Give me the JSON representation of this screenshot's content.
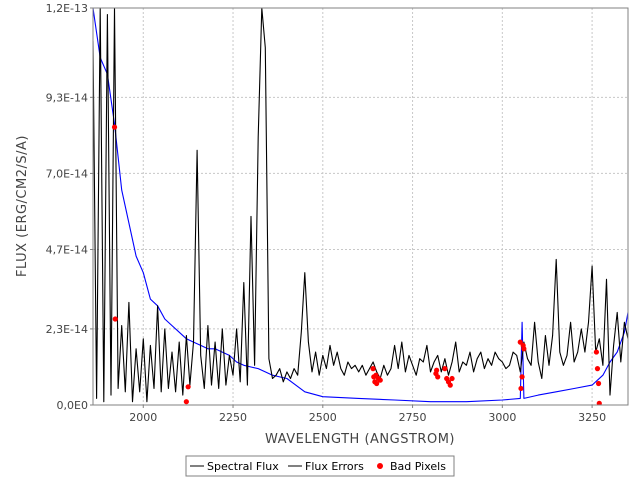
{
  "chart_data": {
    "type": "line",
    "title": "",
    "xlabel": "WAVELENGTH (ANGSTROM)",
    "ylabel": "FLUX (ERG/CM2/S/A)",
    "xlim": [
      1860,
      3350
    ],
    "ylim": [
      0,
      1.2e-13
    ],
    "x_ticks": [
      2000,
      2250,
      2500,
      2750,
      3000,
      3250
    ],
    "x_tick_labels": [
      "2000",
      "2250",
      "2500",
      "2750",
      "3000",
      "3250"
    ],
    "y_ticks": [
      0,
      2.3e-14,
      4.7e-14,
      7e-14,
      9.3e-14,
      1.2e-13
    ],
    "y_tick_labels": [
      "0,0E0",
      "2,3E-14",
      "4,7E-14",
      "7,0E-14",
      "9,3E-14",
      "1,2E-13"
    ],
    "grid": true,
    "legend_placement": "bottom-center",
    "series": [
      {
        "name": "Spectral Flux",
        "color": "#000000",
        "x": [
          1860,
          1870,
          1880,
          1890,
          1900,
          1910,
          1920,
          1930,
          1940,
          1950,
          1960,
          1970,
          1980,
          1990,
          2000,
          2010,
          2020,
          2030,
          2040,
          2050,
          2060,
          2070,
          2080,
          2090,
          2100,
          2110,
          2120,
          2130,
          2140,
          2150,
          2160,
          2170,
          2180,
          2190,
          2200,
          2210,
          2220,
          2230,
          2240,
          2250,
          2260,
          2270,
          2280,
          2290,
          2300,
          2310,
          2320,
          2330,
          2340,
          2350,
          2360,
          2370,
          2380,
          2390,
          2400,
          2410,
          2420,
          2430,
          2440,
          2450,
          2460,
          2470,
          2480,
          2490,
          2500,
          2510,
          2520,
          2530,
          2540,
          2550,
          2560,
          2570,
          2580,
          2590,
          2600,
          2610,
          2620,
          2630,
          2640,
          2650,
          2660,
          2670,
          2680,
          2690,
          2700,
          2710,
          2720,
          2730,
          2740,
          2750,
          2760,
          2770,
          2780,
          2790,
          2800,
          2810,
          2820,
          2830,
          2840,
          2850,
          2860,
          2870,
          2880,
          2890,
          2900,
          2910,
          2920,
          2930,
          2940,
          2950,
          2960,
          2970,
          2980,
          2990,
          3000,
          3010,
          3020,
          3030,
          3040,
          3050,
          3060,
          3070,
          3080,
          3090,
          3100,
          3110,
          3120,
          3130,
          3140,
          3150,
          3160,
          3170,
          3180,
          3190,
          3200,
          3210,
          3220,
          3230,
          3240,
          3250,
          3260,
          3270,
          3280,
          3290,
          3300,
          3310,
          3320,
          3330,
          3340,
          3350
        ],
        "y": [
          1.1e-13,
          2e-15,
          1.2e-13,
          1e-15,
          1.18e-13,
          3e-15,
          1.2e-13,
          5e-15,
          2.4e-14,
          4e-15,
          3.1e-14,
          1e-15,
          1.7e-14,
          4e-15,
          2e-14,
          1e-15,
          1.8e-14,
          5e-15,
          3e-14,
          4e-15,
          2.3e-14,
          5e-15,
          1.6e-14,
          4e-15,
          1.9e-14,
          3e-15,
          2.1e-14,
          6e-15,
          1.9e-14,
          7.7e-14,
          1.5e-14,
          5e-15,
          2.4e-14,
          6e-15,
          1.9e-14,
          5e-15,
          2.3e-14,
          6e-15,
          1.5e-14,
          9e-15,
          2.3e-14,
          7e-15,
          3.7e-14,
          6e-15,
          5.7e-14,
          1.2e-14,
          8.1e-14,
          1.2e-13,
          1.08e-13,
          1.4e-14,
          8e-15,
          9e-15,
          1.1e-14,
          7e-15,
          1e-14,
          8e-15,
          1.1e-14,
          9e-15,
          2.2e-14,
          4e-14,
          1.9e-14,
          1e-14,
          1.6e-14,
          9e-15,
          1.5e-14,
          1.1e-14,
          1.8e-14,
          1.2e-14,
          1.6e-14,
          1.1e-14,
          9e-15,
          1.3e-14,
          1.1e-14,
          1.2e-14,
          1e-14,
          1.2e-14,
          9e-15,
          1.1e-14,
          1.3e-14,
          1e-14,
          8e-15,
          1.2e-14,
          9e-15,
          1.1e-14,
          1.8e-14,
          1.1e-14,
          1.9e-14,
          1e-14,
          1.5e-14,
          1.2e-14,
          9e-15,
          1.4e-14,
          1.3e-14,
          1.8e-14,
          1e-14,
          1.3e-14,
          1.5e-14,
          1e-14,
          1.4e-14,
          9e-15,
          1.3e-14,
          1.9e-14,
          1e-14,
          1.3e-14,
          1.2e-14,
          1.6e-14,
          1e-14,
          1.4e-14,
          1.6e-14,
          1.1e-14,
          1.4e-14,
          1.2e-14,
          1.6e-14,
          1.4e-14,
          1.3e-14,
          1.1e-14,
          1.2e-14,
          1.6e-14,
          1.5e-14,
          1e-14,
          1.9e-14,
          1.4e-14,
          1.2e-14,
          2.5e-14,
          1.3e-14,
          8e-15,
          2.1e-14,
          1.2e-14,
          2.1e-14,
          4.4e-14,
          1.6e-14,
          1.2e-14,
          1.5e-14,
          2.5e-14,
          1.3e-14,
          1.6e-14,
          2.3e-14,
          1.6e-14,
          2.5e-14,
          4.2e-14,
          1.6e-14,
          2e-14,
          1.2e-14,
          3.8e-14,
          3e-15,
          1.8e-14,
          2.8e-14,
          1.3e-14,
          2.5e-14,
          2e-14
        ]
      },
      {
        "name": "Flux Errors",
        "color": "#0000ff",
        "x": [
          1860,
          1880,
          1900,
          1920,
          1940,
          1960,
          1980,
          2000,
          2020,
          2040,
          2060,
          2080,
          2100,
          2120,
          2140,
          2160,
          2180,
          2200,
          2220,
          2240,
          2260,
          2280,
          2300,
          2320,
          2340,
          2360,
          2380,
          2400,
          2450,
          2500,
          2600,
          2700,
          2800,
          2900,
          3000,
          3050,
          3055,
          3060,
          3100,
          3150,
          3200,
          3250,
          3280,
          3300,
          3320,
          3340,
          3350
        ],
        "y": [
          1.2e-13,
          1.05e-13,
          1e-13,
          8.5e-14,
          6.5e-14,
          5.5e-14,
          4.5e-14,
          4e-14,
          3.2e-14,
          3e-14,
          2.6e-14,
          2.4e-14,
          2.2e-14,
          2e-14,
          1.9e-14,
          1.8e-14,
          1.7e-14,
          1.7e-14,
          1.6e-14,
          1.5e-14,
          1.3e-14,
          1.2e-14,
          1.15e-14,
          1.1e-14,
          1e-14,
          9e-15,
          8.5e-15,
          8e-15,
          4e-15,
          2.5e-15,
          2e-15,
          1.5e-15,
          1e-15,
          1e-15,
          1.5e-15,
          2e-15,
          2.5e-14,
          2e-15,
          3e-15,
          4e-15,
          5e-15,
          6e-15,
          9e-15,
          1.3e-14,
          1.6e-14,
          2.2e-14,
          2.8e-14
        ]
      },
      {
        "name": "Bad Pixels",
        "color": "#ff0000",
        "type": "scatter",
        "x": [
          1920,
          1922,
          2120,
          2125,
          2640,
          2642,
          2645,
          2648,
          2650,
          2655,
          2660,
          2815,
          2817,
          2820,
          2840,
          2845,
          2850,
          2855,
          2860,
          3050,
          3052,
          3055,
          3058,
          3060,
          3262,
          3265,
          3268,
          3270
        ],
        "y": [
          8.4e-14,
          2.6e-14,
          1e-15,
          5.5e-15,
          1.1e-14,
          8.5e-15,
          7e-15,
          9e-15,
          6.5e-15,
          8e-15,
          7.5e-15,
          9.5e-15,
          1.05e-14,
          8.5e-15,
          1.1e-14,
          8e-15,
          7e-15,
          6e-15,
          8e-15,
          1.9e-14,
          5e-15,
          8.5e-15,
          1.8e-14,
          1.7e-14,
          1.6e-14,
          1.1e-14,
          6.5e-15,
          5e-16
        ]
      }
    ]
  }
}
